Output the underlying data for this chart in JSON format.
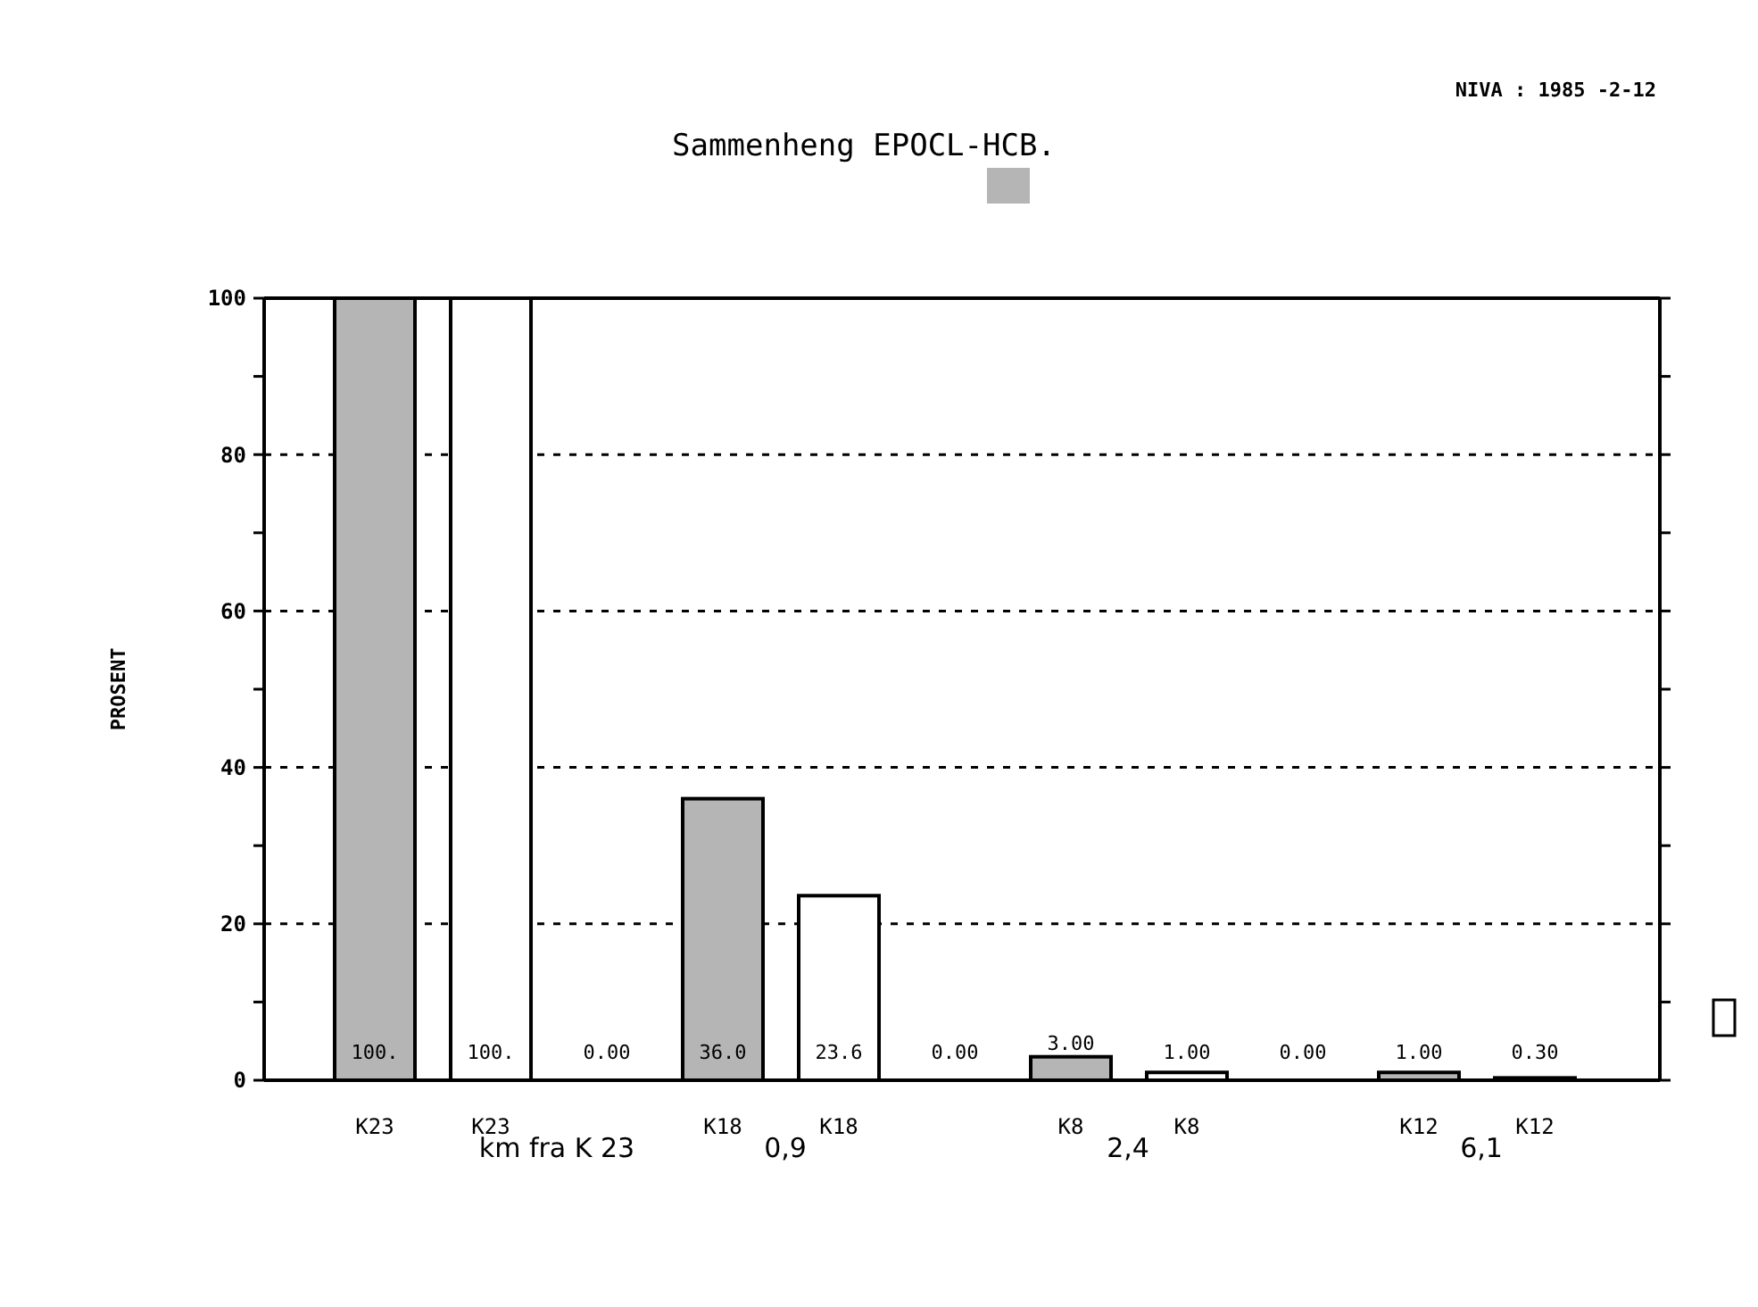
{
  "chart_data": {
    "type": "bar",
    "title": "Sammenheng EPOCL-HCB.",
    "ylabel": "PROSENT",
    "categories": [
      "K23",
      "K23",
      null,
      "K18",
      "K18",
      null,
      "K8",
      "K8",
      null,
      "K12",
      "K12"
    ],
    "values": [
      100,
      100,
      0,
      36,
      23.6,
      0,
      3,
      1,
      0,
      1,
      0.3
    ],
    "colors": [
      "#b5b5b5",
      "#ffffff",
      "#ffffff",
      "#b5b5b5",
      "#ffffff",
      "#ffffff",
      "#b5b5b5",
      "#ffffff",
      "#ffffff",
      "#b5b5b5",
      "#ffffff"
    ],
    "value_labels": [
      "100.",
      "100.",
      "0.00",
      "36.0",
      "23.6",
      "0.00",
      "3.00",
      "1.00",
      "0.00",
      "1.00",
      "0.30"
    ],
    "ylim": [
      0,
      100
    ],
    "yticks": [
      0,
      {
        "value": 10,
        "label": null
      },
      20,
      {
        "value": 30,
        "label": null
      },
      40,
      {
        "value": 50,
        "label": null
      },
      60,
      {
        "value": 70,
        "label": null
      },
      80,
      {
        "value": 90,
        "label": null
      },
      100
    ],
    "grid": "y",
    "annotations": [
      "NIVA :  1985 -2-12",
      "km fra K 23",
      "0,9",
      "2,4",
      "6,1"
    ]
  }
}
